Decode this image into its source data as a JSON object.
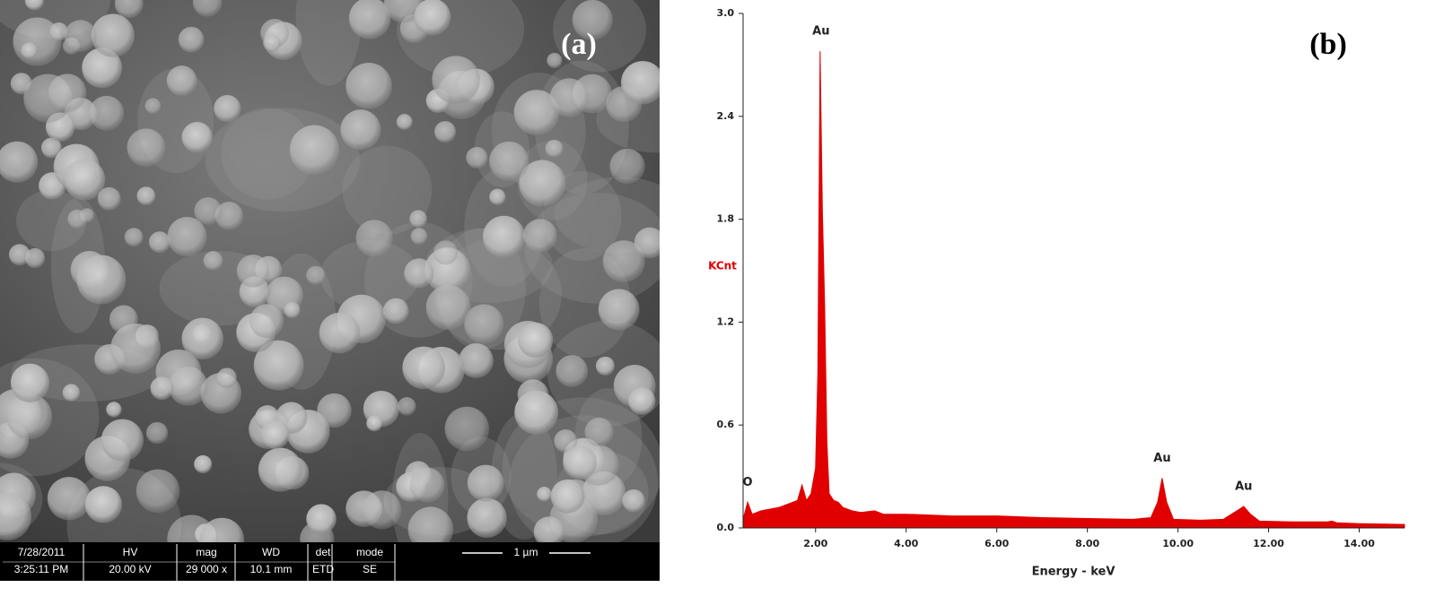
{
  "sem_image": {
    "panel_label": "(a)",
    "info_bar": [
      [
        "7/28/2011",
        "3:25:11 PM"
      ],
      [
        "HV",
        "20.00 kV"
      ],
      [
        "mag",
        "29 000 x"
      ],
      [
        "WD",
        "10.1 mm"
      ],
      [
        "det",
        "ETD"
      ],
      [
        "mode",
        "SE"
      ]
    ],
    "scale_bar": "1 µm"
  },
  "chart_data": {
    "type": "area",
    "panel_label": "(b)",
    "x_label": "Energy - keV",
    "y_label": "KCnt",
    "color": "#e00000",
    "x": [
      0.4,
      0.5,
      0.6,
      0.8,
      1.0,
      1.2,
      1.4,
      1.6,
      1.7,
      1.8,
      1.9,
      2.0,
      2.05,
      2.1,
      2.15,
      2.2,
      2.25,
      2.3,
      2.4,
      2.5,
      2.6,
      2.8,
      3.0,
      3.3,
      3.5,
      4.0,
      5.0,
      6.0,
      7.0,
      8.0,
      9.0,
      9.4,
      9.55,
      9.65,
      9.75,
      9.9,
      10.5,
      11.0,
      11.3,
      11.45,
      11.6,
      11.8,
      12.5,
      13.3,
      13.4,
      13.5,
      14.0,
      15.0
    ],
    "values": [
      0.05,
      0.15,
      0.08,
      0.1,
      0.11,
      0.12,
      0.14,
      0.16,
      0.25,
      0.16,
      0.2,
      0.35,
      0.9,
      2.78,
      1.85,
      1.3,
      0.5,
      0.2,
      0.16,
      0.15,
      0.12,
      0.1,
      0.09,
      0.1,
      0.08,
      0.08,
      0.07,
      0.07,
      0.06,
      0.055,
      0.05,
      0.06,
      0.15,
      0.29,
      0.15,
      0.05,
      0.045,
      0.05,
      0.1,
      0.125,
      0.08,
      0.04,
      0.035,
      0.035,
      0.04,
      0.03,
      0.025,
      0.02
    ],
    "xlim": [
      0.4,
      15.0
    ],
    "ylim": [
      0,
      3.0
    ],
    "xticks": [
      {
        "value": 2,
        "label": "2.00"
      },
      {
        "value": 4,
        "label": "4.00"
      },
      {
        "value": 6,
        "label": "6.00"
      },
      {
        "value": 8,
        "label": "8.00"
      },
      {
        "value": 10,
        "label": "10.00"
      },
      {
        "value": 12,
        "label": "12.00"
      },
      {
        "value": 14,
        "label": "14.00"
      }
    ],
    "yticks": [
      {
        "value": 0,
        "label": "0.0"
      },
      0.6,
      1.2,
      1.8,
      2.4,
      {
        "value": 3,
        "label": "3.0"
      }
    ],
    "annotations": [
      {
        "text": "O",
        "x": 0.5,
        "y": 0.15
      },
      {
        "text": "Au",
        "x": 2.12,
        "y": 2.78
      },
      {
        "text": "Au",
        "x": 9.65,
        "y": 0.29
      },
      {
        "text": "Au",
        "x": 11.45,
        "y": 0.125
      }
    ]
  }
}
